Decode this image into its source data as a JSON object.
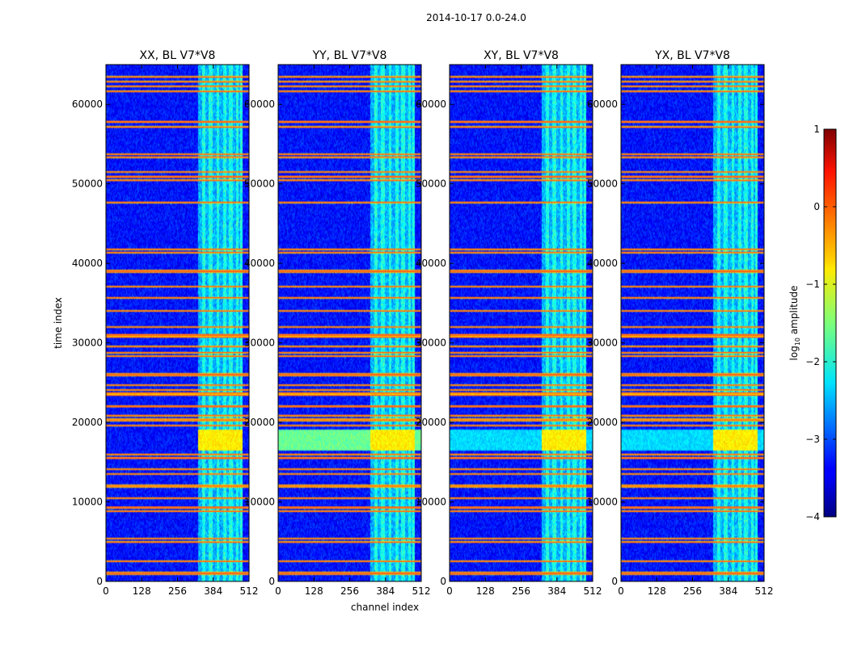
{
  "chart_data": {
    "type": "heatmap",
    "suptitle": "2014-10-17 0.0-24.0",
    "xlabel": "channel index",
    "ylabel": "time index",
    "xlim": [
      0,
      512
    ],
    "ylim": [
      0,
      65000
    ],
    "xticks": [
      0,
      128,
      256,
      384,
      512
    ],
    "yticks": [
      0,
      10000,
      20000,
      30000,
      40000,
      50000,
      60000
    ],
    "colorbar": {
      "label": "log10 amplitude",
      "label_prefix": "log",
      "label_subscript": "10",
      "label_suffix": " amplitude",
      "min": -4,
      "max": 1,
      "ticks": [
        -4,
        -3,
        -2,
        -1,
        0,
        1
      ],
      "tick_labels": [
        "−4",
        "−3",
        "−2",
        "−1",
        "0",
        "1"
      ],
      "colormap": "jet"
    },
    "panels": [
      {
        "title": "XX, BL V7*V8"
      },
      {
        "title": "YY, BL V7*V8"
      },
      {
        "title": "XY, BL V7*V8"
      },
      {
        "title": "YX, BL V7*V8"
      }
    ],
    "background_level": -3.3,
    "rfi_band_channels": [
      330,
      490
    ],
    "rfi_band_level": -2.0,
    "rfi_subbands": [
      [
        330,
        345
      ],
      [
        355,
        368
      ],
      [
        383,
        395
      ],
      [
        405,
        418
      ],
      [
        430,
        440
      ],
      [
        455,
        465
      ],
      [
        475,
        480
      ]
    ],
    "flagged_rows_time": [
      1000,
      2500,
      4900,
      5350,
      8800,
      9300,
      10500,
      12000,
      13500,
      14100,
      15500,
      16000,
      19600,
      20300,
      20900,
      22000,
      23400,
      23700,
      24100,
      24700,
      26000,
      28300,
      28800,
      29500,
      30700,
      31000,
      32000,
      34000,
      35700,
      37100,
      39000,
      41400,
      41800,
      47700,
      50400,
      50900,
      51500,
      53400,
      53700,
      57100,
      57800,
      61600,
      62300,
      62800,
      63400
    ],
    "hot_region_time": [
      16500,
      19000
    ],
    "hot_region_level": -0.8,
    "xx_spike_time": 43200
  }
}
